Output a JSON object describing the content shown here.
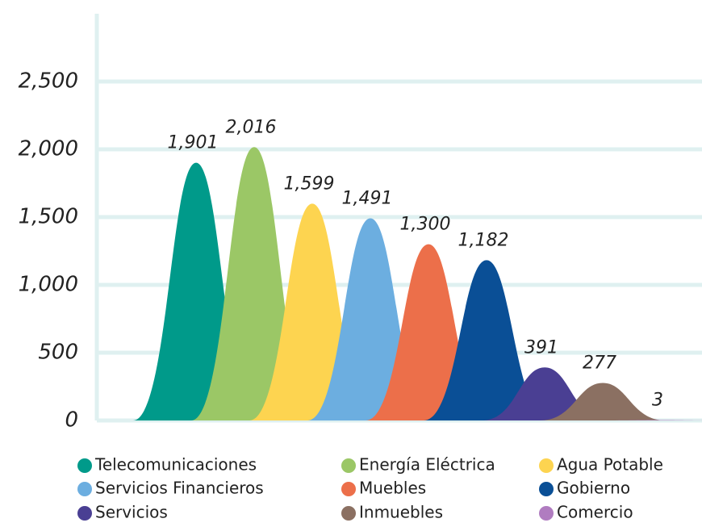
{
  "chart_data": {
    "type": "peak",
    "categories": [
      "Telecomunicaciones",
      "Energía Eléctrica",
      "Agua Potable",
      "Servicios Financieros",
      "Muebles",
      "Gobierno",
      "Servicios",
      "Inmuebles",
      "Comercio"
    ],
    "values": [
      1901,
      2016,
      1599,
      1491,
      1300,
      1182,
      391,
      277,
      3
    ],
    "value_labels": [
      "1,901",
      "2,016",
      "1,599",
      "1,491",
      "1,300",
      "1,182",
      "391",
      "277",
      "3"
    ],
    "colors": [
      "#009a8a",
      "#9bc766",
      "#fdd450",
      "#6caee0",
      "#ec6f4a",
      "#0a4f96",
      "#4a3f93",
      "#8b7062",
      "#b07cc0"
    ],
    "ylim": [
      0,
      3000
    ],
    "yticks": [
      0,
      500,
      {
        "value": 1000,
        "label": "1,000"
      },
      {
        "value": 1500,
        "label": "1,500"
      },
      {
        "value": 2000,
        "label": "2,000"
      },
      {
        "value": 2500,
        "label": "2,500"
      }
    ],
    "grid": true,
    "legend": "bottom"
  }
}
